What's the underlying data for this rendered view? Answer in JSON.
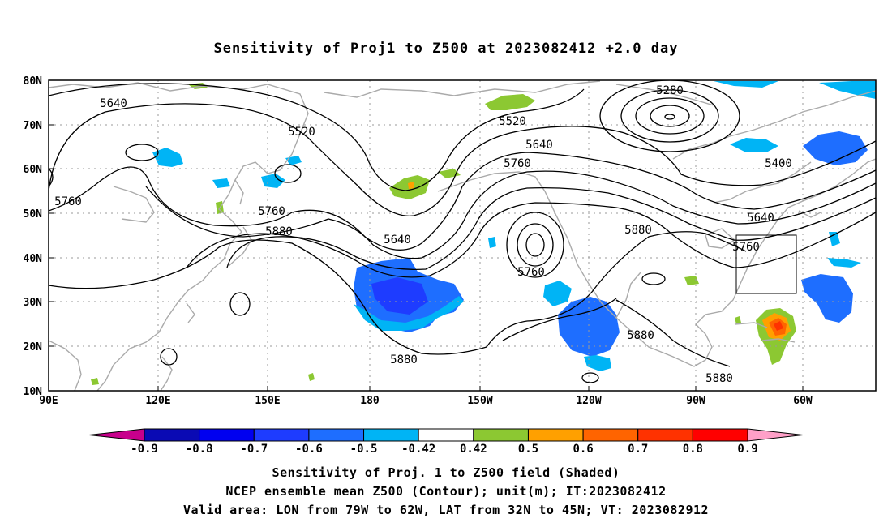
{
  "title": "Sensitivity of Proj1 to Z500 at 2023082412 +2.0 day",
  "map": {
    "lon_range": [
      "90E",
      "310E"
    ],
    "lat_range": [
      "10N",
      "80N"
    ],
    "lat_labels": [
      "80N",
      "70N",
      "60N",
      "50N",
      "40N",
      "30N",
      "20N",
      "10N"
    ],
    "lon_labels": [
      "90E",
      "120E",
      "150E",
      "180",
      "150W",
      "120W",
      "90W",
      "60W"
    ],
    "gridlines": true,
    "contour_labels": [
      "5280",
      "5640",
      "5520",
      "5520",
      "5640",
      "5400",
      "5760",
      "5760",
      "5640",
      "5760",
      "5880",
      "5640",
      "5760",
      "5880",
      "5760",
      "5880",
      "5880",
      "5880"
    ],
    "valid_box": {
      "lon": [
        "79W",
        "62W"
      ],
      "lat": [
        "32N",
        "45N"
      ]
    }
  },
  "colorbar": {
    "labels": [
      "-0.9",
      "-0.8",
      "-0.7",
      "-0.6",
      "-0.5",
      "-0.42",
      "0.42",
      "0.5",
      "0.6",
      "0.7",
      "0.8",
      "0.9"
    ],
    "colors": [
      "#c8008c",
      "#0a0ab4",
      "#0000f0",
      "#1e3cff",
      "#1e6eff",
      "#00b4f5",
      "#ffffff",
      "#8cc832",
      "#ffa000",
      "#ff6400",
      "#ff3200",
      "#ff0000",
      "#ffa0c8"
    ]
  },
  "captions": {
    "line1": "Sensitivity of Proj. 1 to Z500 field (Shaded)",
    "line2": "NCEP ensemble mean Z500 (Contour); unit(m); IT:2023082412",
    "line3": "Valid area: LON from 79W to 62W, LAT from 32N to 45N; VT: 2023082912"
  }
}
